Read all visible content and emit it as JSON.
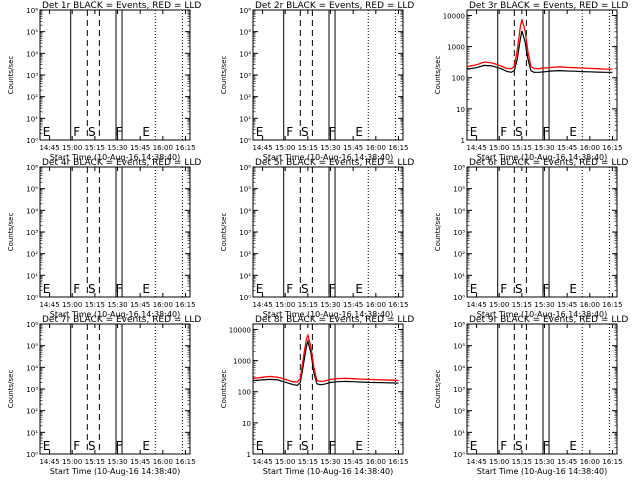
{
  "chart_data": [
    {
      "type": "line",
      "title": "Det 1r BLACK = Events, RED = LLD",
      "ylabel": "Counts/sec",
      "xlabel": "Start Time (10-Aug-16 14:38:40)",
      "x_ticks": [
        "14:45",
        "15:00",
        "15:15",
        "15:30",
        "15:45",
        "16:00",
        "16:15"
      ],
      "y_ticks": [
        "10⁰",
        "10¹",
        "10²",
        "10³",
        "10⁴",
        "10⁵",
        "10⁶"
      ],
      "scale": "log",
      "ylim": [
        1,
        1000000
      ],
      "solid_lines": [
        "14:59",
        "15:29",
        "15:33"
      ],
      "dashed_lines": [
        "15:10",
        "15:18"
      ],
      "dotted_lines": [
        "15:55",
        "16:13"
      ],
      "region_labels": [
        {
          "text": "E",
          "x": "14:43"
        },
        {
          "text": "F",
          "x": "15:03"
        },
        {
          "text": "S",
          "x": "15:13"
        },
        {
          "text": "F",
          "x": "15:31"
        },
        {
          "text": "E",
          "x": "15:49"
        }
      ],
      "series": []
    },
    {
      "type": "line",
      "title": "Det 2r BLACK = Events, RED = LLD",
      "ylabel": "Counts/sec",
      "xlabel": "Start Time (10-Aug-16 14:38:40)",
      "x_ticks": [
        "14:45",
        "15:00",
        "15:15",
        "15:30",
        "15:45",
        "16:00",
        "16:15"
      ],
      "y_ticks": [
        "10⁰",
        "10¹",
        "10²",
        "10³",
        "10⁴",
        "10⁵",
        "10⁶"
      ],
      "scale": "log",
      "ylim": [
        1,
        1000000
      ],
      "solid_lines": [
        "14:59",
        "15:29",
        "15:33"
      ],
      "dashed_lines": [
        "15:10",
        "15:18"
      ],
      "dotted_lines": [
        "15:55",
        "16:13"
      ],
      "region_labels": [
        {
          "text": "E",
          "x": "14:43"
        },
        {
          "text": "F",
          "x": "15:03"
        },
        {
          "text": "S",
          "x": "15:13"
        },
        {
          "text": "F",
          "x": "15:31"
        },
        {
          "text": "E",
          "x": "15:49"
        }
      ],
      "series": []
    },
    {
      "type": "line",
      "title": "Det 3r BLACK = Events, RED = LLD",
      "ylabel": "Counts/sec",
      "xlabel": "Start Time (10-Aug-16 14:38:40)",
      "x_ticks": [
        "14:45",
        "15:00",
        "15:15",
        "15:30",
        "15:45",
        "16:00",
        "16:15"
      ],
      "y_ticks": [
        "1",
        "10",
        "100",
        "1000",
        "10000"
      ],
      "scale": "log",
      "ylim": [
        1,
        15000
      ],
      "solid_lines": [
        "14:59",
        "15:29",
        "15:33"
      ],
      "dashed_lines": [
        "15:10",
        "15:18"
      ],
      "dotted_lines": [
        "15:55",
        "16:13"
      ],
      "region_labels": [
        {
          "text": "E",
          "x": "14:43"
        },
        {
          "text": "F",
          "x": "15:03"
        },
        {
          "text": "S",
          "x": "15:13"
        },
        {
          "text": "F",
          "x": "15:31"
        },
        {
          "text": "E",
          "x": "15:49"
        }
      ],
      "series": [
        {
          "color": "#000000",
          "x": [
            "14:39",
            "14:45",
            "14:50",
            "14:55",
            "14:59",
            "15:02",
            "15:05",
            "15:08",
            "15:10",
            "15:12",
            "15:14",
            "15:15",
            "15:17",
            "15:19",
            "15:21",
            "15:23",
            "15:26",
            "15:30",
            "15:35",
            "15:40",
            "15:45",
            "15:50",
            "15:55",
            "16:00",
            "16:05",
            "16:10",
            "16:15"
          ],
          "y": [
            190,
            210,
            250,
            240,
            210,
            190,
            160,
            150,
            170,
            400,
            1800,
            3200,
            1500,
            400,
            170,
            150,
            150,
            155,
            165,
            170,
            165,
            162,
            158,
            155,
            152,
            150,
            150
          ]
        },
        {
          "color": "#ff0000",
          "x": [
            "14:39",
            "14:45",
            "14:50",
            "14:55",
            "14:59",
            "15:02",
            "15:05",
            "15:08",
            "15:10",
            "15:12",
            "15:14",
            "15:15",
            "15:17",
            "15:19",
            "15:21",
            "15:23",
            "15:26",
            "15:30",
            "15:35",
            "15:40",
            "15:45",
            "15:50",
            "15:55",
            "16:00",
            "16:05",
            "16:10",
            "16:15"
          ],
          "y": [
            230,
            260,
            320,
            300,
            260,
            230,
            200,
            195,
            230,
            800,
            4500,
            7500,
            3500,
            700,
            230,
            200,
            195,
            205,
            215,
            225,
            215,
            210,
            205,
            200,
            195,
            190,
            190
          ]
        }
      ]
    },
    {
      "type": "line",
      "title": "Det 4r BLACK = Events, RED = LLD",
      "ylabel": "Counts/sec",
      "xlabel": "Start Time (10-Aug-16 14:38:40)",
      "x_ticks": [
        "14:45",
        "15:00",
        "15:15",
        "15:30",
        "15:45",
        "16:00",
        "16:15"
      ],
      "y_ticks": [
        "10⁰",
        "10¹",
        "10²",
        "10³",
        "10⁴",
        "10⁵",
        "10⁶"
      ],
      "scale": "log",
      "ylim": [
        1,
        1000000
      ],
      "solid_lines": [
        "14:59",
        "15:29",
        "15:33"
      ],
      "dashed_lines": [
        "15:10",
        "15:18"
      ],
      "dotted_lines": [
        "15:55",
        "16:13"
      ],
      "region_labels": [
        {
          "text": "E",
          "x": "14:43"
        },
        {
          "text": "F",
          "x": "15:03"
        },
        {
          "text": "S",
          "x": "15:13"
        },
        {
          "text": "F",
          "x": "15:31"
        },
        {
          "text": "E",
          "x": "15:49"
        }
      ],
      "series": []
    },
    {
      "type": "line",
      "title": "Det 5r BLACK = Events, RED = LLD",
      "ylabel": "Counts/sec",
      "xlabel": "Start Time (10-Aug-16 14:38:40)",
      "x_ticks": [
        "14:45",
        "15:00",
        "15:15",
        "15:30",
        "15:45",
        "16:00",
        "16:15"
      ],
      "y_ticks": [
        "10⁰",
        "10¹",
        "10²",
        "10³",
        "10⁴",
        "10⁵",
        "10⁶"
      ],
      "scale": "log",
      "ylim": [
        1,
        1000000
      ],
      "solid_lines": [
        "14:59",
        "15:29",
        "15:33"
      ],
      "dashed_lines": [
        "15:10",
        "15:18"
      ],
      "dotted_lines": [
        "15:55",
        "16:13"
      ],
      "region_labels": [
        {
          "text": "E",
          "x": "14:43"
        },
        {
          "text": "F",
          "x": "15:03"
        },
        {
          "text": "S",
          "x": "15:13"
        },
        {
          "text": "F",
          "x": "15:31"
        },
        {
          "text": "E",
          "x": "15:49"
        }
      ],
      "series": []
    },
    {
      "type": "line",
      "title": "Det 6r BLACK = Events, RED = LLD",
      "ylabel": "Counts/sec",
      "xlabel": "Start Time (10-Aug-16 14:38:40)",
      "x_ticks": [
        "14:45",
        "15:00",
        "15:15",
        "15:30",
        "15:45",
        "16:00",
        "16:15"
      ],
      "y_ticks": [
        "10⁰",
        "10¹",
        "10²",
        "10³",
        "10⁴",
        "10⁵",
        "10⁶"
      ],
      "scale": "log",
      "ylim": [
        1,
        1000000
      ],
      "solid_lines": [
        "14:59",
        "15:29",
        "15:33"
      ],
      "dashed_lines": [
        "15:10",
        "15:18"
      ],
      "dotted_lines": [
        "15:55",
        "16:13"
      ],
      "region_labels": [
        {
          "text": "E",
          "x": "14:43"
        },
        {
          "text": "F",
          "x": "15:03"
        },
        {
          "text": "S",
          "x": "15:13"
        },
        {
          "text": "F",
          "x": "15:31"
        },
        {
          "text": "E",
          "x": "15:49"
        }
      ],
      "series": []
    },
    {
      "type": "line",
      "title": "Det 7r BLACK = Events, RED = LLD",
      "ylabel": "Counts/sec",
      "xlabel": "Start Time (10-Aug-16 14:38:40)",
      "x_ticks": [
        "14:45",
        "15:00",
        "15:15",
        "15:30",
        "15:45",
        "16:00",
        "16:15"
      ],
      "y_ticks": [
        "10⁰",
        "10¹",
        "10²",
        "10³",
        "10⁴",
        "10⁵",
        "10⁶"
      ],
      "scale": "log",
      "ylim": [
        1,
        1000000
      ],
      "solid_lines": [
        "14:59",
        "15:29",
        "15:33"
      ],
      "dashed_lines": [
        "15:10",
        "15:18"
      ],
      "dotted_lines": [
        "15:55",
        "16:13"
      ],
      "region_labels": [
        {
          "text": "E",
          "x": "14:43"
        },
        {
          "text": "F",
          "x": "15:03"
        },
        {
          "text": "S",
          "x": "15:13"
        },
        {
          "text": "F",
          "x": "15:31"
        },
        {
          "text": "E",
          "x": "15:49"
        }
      ],
      "series": []
    },
    {
      "type": "line",
      "title": "Det 8r BLACK = Events, RED = LLD",
      "ylabel": "Counts/sec",
      "xlabel": "Start Time (10-Aug-16 14:38:40)",
      "x_ticks": [
        "14:45",
        "15:00",
        "15:15",
        "15:30",
        "15:45",
        "16:00",
        "16:15"
      ],
      "y_ticks": [
        "1",
        "10",
        "100",
        "1000",
        "10000"
      ],
      "scale": "log",
      "ylim": [
        1,
        15000
      ],
      "solid_lines": [
        "14:59",
        "15:29",
        "15:33"
      ],
      "dashed_lines": [
        "15:10",
        "15:18"
      ],
      "dotted_lines": [
        "15:55",
        "16:13"
      ],
      "region_labels": [
        {
          "text": "E",
          "x": "14:43"
        },
        {
          "text": "F",
          "x": "15:03"
        },
        {
          "text": "S",
          "x": "15:13"
        },
        {
          "text": "F",
          "x": "15:31"
        },
        {
          "text": "E",
          "x": "15:49"
        }
      ],
      "series": [
        {
          "color": "#000000",
          "x": [
            "14:39",
            "14:45",
            "14:50",
            "14:55",
            "14:59",
            "15:02",
            "15:05",
            "15:08",
            "15:10",
            "15:12",
            "15:14",
            "15:15",
            "15:17",
            "15:19",
            "15:21",
            "15:23",
            "15:26",
            "15:30",
            "15:35",
            "15:40",
            "15:45",
            "15:50",
            "15:55",
            "16:00",
            "16:05",
            "16:10",
            "16:15"
          ],
          "y": [
            230,
            240,
            250,
            240,
            210,
            190,
            170,
            160,
            200,
            700,
            2800,
            4200,
            1800,
            400,
            180,
            170,
            175,
            200,
            210,
            215,
            210,
            205,
            200,
            198,
            195,
            192,
            190
          ]
        },
        {
          "color": "#ff0000",
          "x": [
            "14:39",
            "14:45",
            "14:50",
            "14:55",
            "14:59",
            "15:02",
            "15:05",
            "15:08",
            "15:10",
            "15:12",
            "15:14",
            "15:15",
            "15:17",
            "15:19",
            "15:21",
            "15:23",
            "15:26",
            "15:30",
            "15:35",
            "15:40",
            "15:45",
            "15:50",
            "15:55",
            "16:00",
            "16:05",
            "16:10",
            "16:15"
          ],
          "y": [
            270,
            290,
            310,
            290,
            260,
            235,
            210,
            205,
            260,
            1200,
            5000,
            6500,
            2800,
            600,
            230,
            215,
            220,
            250,
            265,
            270,
            262,
            255,
            250,
            245,
            240,
            235,
            232
          ]
        }
      ]
    },
    {
      "type": "line",
      "title": "Det 9r BLACK = Events, RED = LLD",
      "ylabel": "Counts/sec",
      "xlabel": "Start Time (10-Aug-16 14:38:40)",
      "x_ticks": [
        "14:45",
        "15:00",
        "15:15",
        "15:30",
        "15:45",
        "16:00",
        "16:15"
      ],
      "y_ticks": [
        "10⁰",
        "10¹",
        "10²",
        "10³",
        "10⁴",
        "10⁵",
        "10⁶"
      ],
      "scale": "log",
      "ylim": [
        1,
        1000000
      ],
      "solid_lines": [
        "14:59",
        "15:29",
        "15:33"
      ],
      "dashed_lines": [
        "15:10",
        "15:18"
      ],
      "dotted_lines": [
        "15:55",
        "16:13"
      ],
      "region_labels": [
        {
          "text": "E",
          "x": "14:43"
        },
        {
          "text": "F",
          "x": "15:03"
        },
        {
          "text": "S",
          "x": "15:13"
        },
        {
          "text": "F",
          "x": "15:31"
        },
        {
          "text": "E",
          "x": "15:49"
        }
      ],
      "series": []
    }
  ]
}
